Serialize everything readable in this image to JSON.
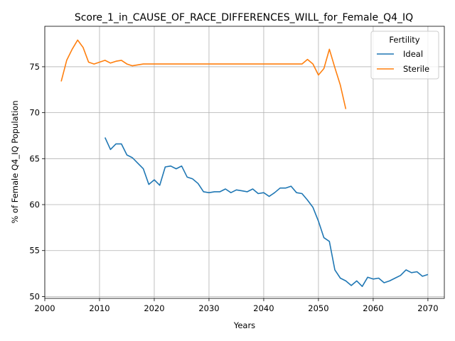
{
  "chart_data": {
    "type": "line",
    "title": "Score_1_in_CAUSE_OF_RACE_DIFFERENCES_WILL_for_Female_Q4_IQ",
    "xlabel": "Years",
    "ylabel": "% of Female Q4_IQ Population",
    "xlim": [
      2000,
      2073
    ],
    "ylim": [
      49.8,
      79.4
    ],
    "xticks": [
      2000,
      2010,
      2020,
      2030,
      2040,
      2050,
      2060,
      2070
    ],
    "yticks": [
      50,
      55,
      60,
      65,
      70,
      75
    ],
    "grid": true,
    "legend": {
      "title": "Fertility",
      "placement": "top-right"
    },
    "series": [
      {
        "name": "Ideal",
        "color": "#1f77b4",
        "x": [
          2011,
          2012,
          2013,
          2014,
          2015,
          2016,
          2017,
          2018,
          2019,
          2020,
          2021,
          2022,
          2023,
          2024,
          2025,
          2026,
          2027,
          2028,
          2029,
          2030,
          2031,
          2032,
          2033,
          2034,
          2035,
          2036,
          2037,
          2038,
          2039,
          2040,
          2041,
          2042,
          2043,
          2044,
          2045,
          2046,
          2047,
          2048,
          2049,
          2050,
          2051,
          2052,
          2053,
          2054,
          2055,
          2056,
          2057,
          2058,
          2059,
          2060,
          2061,
          2062,
          2063,
          2064,
          2065,
          2066,
          2067,
          2068,
          2069,
          2070
        ],
        "y": [
          67.3,
          66.0,
          66.6,
          66.6,
          65.4,
          65.1,
          64.5,
          63.9,
          62.2,
          62.7,
          62.1,
          64.1,
          64.2,
          63.9,
          64.2,
          63.0,
          62.8,
          62.3,
          61.4,
          61.3,
          61.4,
          61.4,
          61.7,
          61.3,
          61.6,
          61.5,
          61.4,
          61.7,
          61.2,
          61.3,
          60.9,
          61.3,
          61.8,
          61.8,
          62.0,
          61.3,
          61.2,
          60.5,
          59.7,
          58.2,
          56.4,
          56.0,
          52.9,
          52.0,
          51.7,
          51.2,
          51.7,
          51.1,
          52.1,
          51.9,
          52.0,
          51.5,
          51.7,
          52.0,
          52.3,
          52.9,
          52.6,
          52.7,
          52.2,
          52.4
        ]
      },
      {
        "name": "Sterile",
        "color": "#ff7f0e",
        "x": [
          2003,
          2004,
          2005,
          2006,
          2007,
          2008,
          2009,
          2010,
          2011,
          2012,
          2013,
          2014,
          2015,
          2016,
          2017,
          2018,
          2019,
          2020,
          2025,
          2030,
          2035,
          2040,
          2045,
          2047,
          2048,
          2049,
          2050,
          2051,
          2052,
          2053,
          2054,
          2055
        ],
        "y": [
          73.4,
          75.7,
          76.9,
          77.9,
          77.1,
          75.5,
          75.3,
          75.5,
          75.7,
          75.4,
          75.6,
          75.7,
          75.3,
          75.1,
          75.2,
          75.3,
          75.3,
          75.3,
          75.3,
          75.3,
          75.3,
          75.3,
          75.3,
          75.3,
          75.8,
          75.3,
          74.1,
          74.8,
          76.9,
          74.9,
          73.0,
          70.4
        ]
      }
    ]
  }
}
